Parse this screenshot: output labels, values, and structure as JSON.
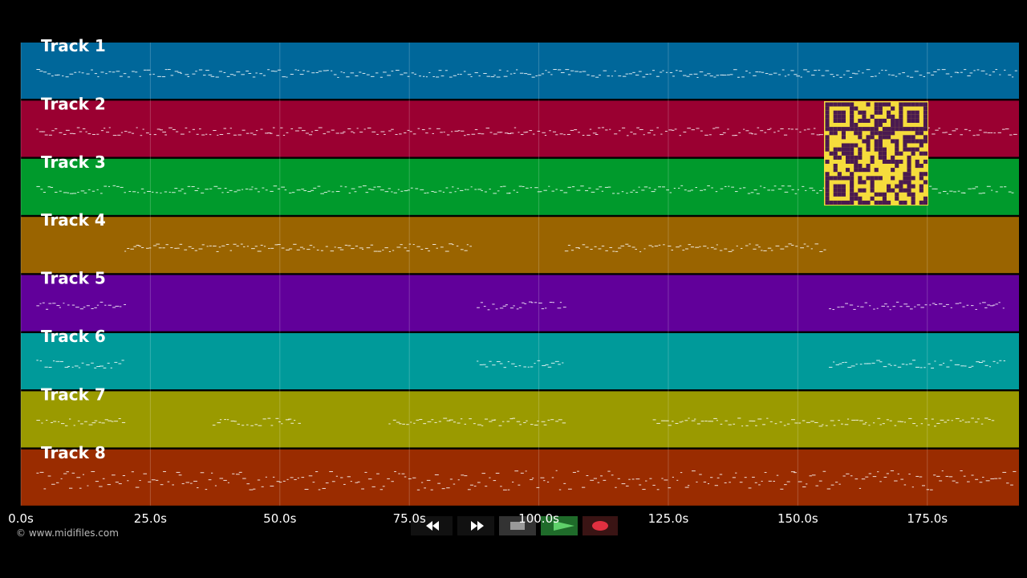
{
  "tracks": [
    {
      "name": "Track 1",
      "color": "#00679a",
      "spans": [
        [
          3,
          192
        ]
      ]
    },
    {
      "name": "Track 2",
      "color": "#9a0031",
      "spans": [
        [
          3,
          192
        ]
      ]
    },
    {
      "name": "Track 3",
      "color": "#009a2c",
      "spans": [
        [
          3,
          192
        ]
      ]
    },
    {
      "name": "Track 4",
      "color": "#9a6400",
      "spans": [
        [
          20,
          87
        ],
        [
          105,
          155
        ]
      ]
    },
    {
      "name": "Track 5",
      "color": "#61009a",
      "spans": [
        [
          3,
          20
        ],
        [
          88,
          105
        ],
        [
          156,
          190
        ]
      ]
    },
    {
      "name": "Track 6",
      "color": "#009a9a",
      "spans": [
        [
          3,
          20
        ],
        [
          88,
          105
        ],
        [
          156,
          190
        ]
      ]
    },
    {
      "name": "Track 7",
      "color": "#9a9a00",
      "spans": [
        [
          3,
          20
        ],
        [
          37,
          54
        ],
        [
          71,
          105
        ],
        [
          122,
          188
        ]
      ]
    },
    {
      "name": "Track 8",
      "color": "#9a2c00",
      "spans": [
        [
          3,
          192
        ]
      ]
    }
  ],
  "xlim": [
    0,
    192.7
  ],
  "xticks": [
    {
      "value": 0,
      "label": "0.0s"
    },
    {
      "value": 25,
      "label": "25.0s"
    },
    {
      "value": 50,
      "label": "50.0s"
    },
    {
      "value": 75,
      "label": "75.0s"
    },
    {
      "value": 100,
      "label": "100.0s"
    },
    {
      "value": 125,
      "label": "125.0s"
    },
    {
      "value": 150,
      "label": "150.0s"
    },
    {
      "value": 175,
      "label": "175.0s"
    }
  ],
  "copyright": "© www.midifiles.com"
}
